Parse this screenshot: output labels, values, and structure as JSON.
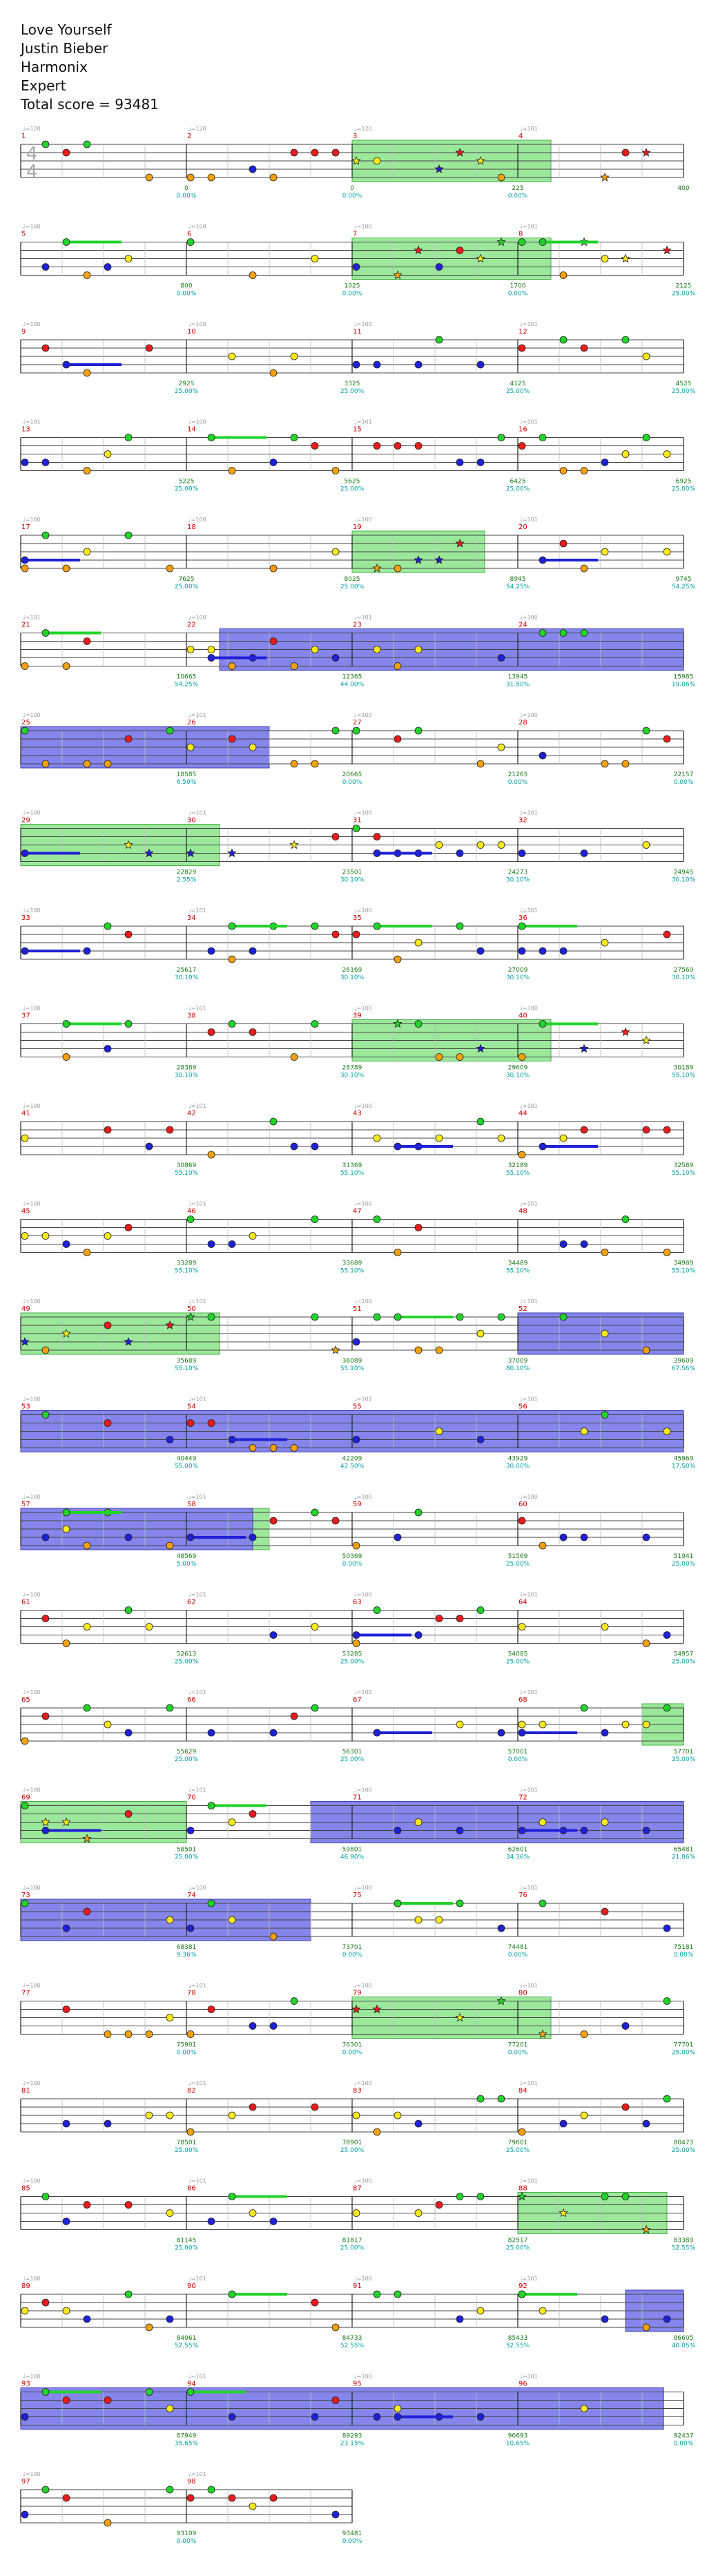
{
  "header": {
    "song": "Love Yourself",
    "artist": "Justin Bieber",
    "game": "Harmonix",
    "difficulty": "Expert",
    "total_score": "Total score = 93481"
  },
  "time_signature": {
    "top": "4",
    "bottom": "4"
  },
  "colors": {
    "green": "#22d32a",
    "red": "#e81c1c",
    "yellow": "#f7e91a",
    "blue": "#2020d8",
    "orange": "#f5a10a",
    "purple": "#8b1a8b",
    "star_power": "#9be89b",
    "overdrive": "#7070e8",
    "solo": "#c8d2e4",
    "score": "#1a7a1a",
    "percent": "#00a0a0",
    "measure": "#cc0000"
  },
  "chart_data": {
    "type": "other",
    "title": "Love Yourself",
    "rows": [
      {
        "start": 1,
        "measures": [
          1,
          2,
          3,
          4
        ],
        "tempos": [
          "120",
          "120",
          "120",
          "101"
        ],
        "scores": [
          "0",
          "0",
          "225",
          "400"
        ],
        "percents": [
          "0.00%",
          "0.00%",
          "0.00%",
          ""
        ],
        "sp": [
          [
            2,
            3.2
          ]
        ],
        "od": []
      },
      {
        "start": 5,
        "measures": [
          5,
          6,
          7,
          8
        ],
        "tempos": [
          "100",
          "100",
          "100",
          "101"
        ],
        "scores": [
          "800",
          "1025",
          "1700",
          "2125"
        ],
        "percents": [
          "0.00%",
          "0.00%",
          "0.00%",
          "25.00%"
        ],
        "sp": [
          [
            2,
            3.2
          ]
        ],
        "od": []
      },
      {
        "start": 9,
        "measures": [
          9,
          10,
          11,
          12
        ],
        "tempos": [
          "100",
          "100",
          "100",
          "101"
        ],
        "scores": [
          "2925",
          "3325",
          "4125",
          "4525"
        ],
        "percents": [
          "25.00%",
          "25.00%",
          "25.00%",
          "25.00%"
        ],
        "sp": [],
        "od": []
      },
      {
        "start": 13,
        "measures": [
          13,
          14,
          15,
          16
        ],
        "tempos": [
          "101",
          "100",
          "101",
          "101"
        ],
        "scores": [
          "5225",
          "5625",
          "6425",
          "6925"
        ],
        "percents": [
          "25.00%",
          "25.00%",
          "25.00%",
          "25.00%"
        ],
        "sp": [],
        "od": []
      },
      {
        "start": 17,
        "measures": [
          17,
          18,
          19,
          20
        ],
        "tempos": [
          "100",
          "100",
          "100",
          "101"
        ],
        "scores": [
          "7625",
          "8025",
          "8945",
          "9745"
        ],
        "percents": [
          "25.00%",
          "25.00%",
          "54.25%",
          "54.25%"
        ],
        "sp": [
          [
            2,
            2.8
          ]
        ],
        "od": []
      },
      {
        "start": 21,
        "measures": [
          21,
          22,
          23,
          24
        ],
        "tempos": [
          "101",
          "100",
          "101",
          "100"
        ],
        "scores": [
          "10665",
          "12365",
          "13945",
          "15985"
        ],
        "percents": [
          "54.25%",
          "44.00%",
          "31.50%",
          "19.06%"
        ],
        "sp": [],
        "od": [
          [
            1.2,
            4
          ]
        ]
      },
      {
        "start": 25,
        "measures": [
          25,
          26,
          27,
          28
        ],
        "tempos": [
          "100",
          "101",
          "100",
          "100"
        ],
        "scores": [
          "18585",
          "20665",
          "21265",
          "22157"
        ],
        "percents": [
          "6.50%",
          "0.00%",
          "0.00%",
          "0.00%"
        ],
        "sp": [],
        "od": [
          [
            0,
            1.5
          ]
        ]
      },
      {
        "start": 29,
        "measures": [
          29,
          30,
          31,
          32
        ],
        "tempos": [
          "100",
          "101",
          "100",
          "101"
        ],
        "scores": [
          "22829",
          "23501",
          "24273",
          "24945"
        ],
        "percents": [
          "2.55%",
          "30.10%",
          "30.10%",
          "30.10%"
        ],
        "sp": [
          [
            0,
            1.2
          ]
        ],
        "od": []
      },
      {
        "start": 33,
        "measures": [
          33,
          34,
          35,
          36
        ],
        "tempos": [
          "100",
          "101",
          "100",
          "101"
        ],
        "scores": [
          "25617",
          "26169",
          "27009",
          "27569"
        ],
        "percents": [
          "30.10%",
          "30.10%",
          "30.10%",
          "30.10%"
        ],
        "sp": [],
        "od": []
      },
      {
        "start": 37,
        "measures": [
          37,
          38,
          39,
          40
        ],
        "tempos": [
          "100",
          "101",
          "100",
          "100"
        ],
        "scores": [
          "28389",
          "28789",
          "29609",
          "30189"
        ],
        "percents": [
          "30.10%",
          "30.10%",
          "30.10%",
          "55.10%"
        ],
        "sp": [
          [
            2,
            3.2
          ]
        ],
        "od": []
      },
      {
        "start": 41,
        "measures": [
          41,
          42,
          43,
          44
        ],
        "tempos": [
          "100",
          "101",
          "100",
          "101"
        ],
        "scores": [
          "30869",
          "31369",
          "32189",
          "32589"
        ],
        "percents": [
          "55.10%",
          "55.10%",
          "55.10%",
          "55.10%"
        ],
        "sp": [],
        "od": []
      },
      {
        "start": 45,
        "measures": [
          45,
          46,
          47,
          48
        ],
        "tempos": [
          "100",
          "101",
          "100",
          "101"
        ],
        "scores": [
          "33289",
          "33689",
          "34489",
          "34989"
        ],
        "percents": [
          "55.10%",
          "55.10%",
          "55.10%",
          "55.10%"
        ],
        "sp": [],
        "od": []
      },
      {
        "start": 49,
        "measures": [
          49,
          50,
          51,
          52
        ],
        "tempos": [
          "100",
          "101",
          "100",
          "101"
        ],
        "scores": [
          "35689",
          "36089",
          "37009",
          "39609"
        ],
        "percents": [
          "55.10%",
          "55.10%",
          "80.10%",
          "67.56%"
        ],
        "sp": [
          [
            0,
            1.2
          ]
        ],
        "od": [
          [
            3,
            4
          ]
        ]
      },
      {
        "start": 53,
        "measures": [
          53,
          54,
          55,
          56
        ],
        "tempos": [
          "100",
          "101",
          "101",
          "101"
        ],
        "scores": [
          "40449",
          "42209",
          "43929",
          "45969"
        ],
        "percents": [
          "55.00%",
          "42.50%",
          "30.00%",
          "17.50%"
        ],
        "sp": [],
        "od": [
          [
            0,
            4
          ]
        ]
      },
      {
        "start": 57,
        "measures": [
          57,
          58,
          59,
          60
        ],
        "tempos": [
          "100",
          "101",
          "100",
          "100"
        ],
        "scores": [
          "48569",
          "50369",
          "51569",
          "51941"
        ],
        "percents": [
          "5.00%",
          "0.00%",
          "25.00%",
          "25.00%"
        ],
        "sp": [
          [
            1.4,
            1.5
          ]
        ],
        "od": [
          [
            0,
            1.4
          ]
        ]
      },
      {
        "start": 61,
        "measures": [
          61,
          62,
          63,
          64
        ],
        "tempos": [
          "100",
          "101",
          "100",
          "101"
        ],
        "scores": [
          "52613",
          "53285",
          "54085",
          "54957"
        ],
        "percents": [
          "25.00%",
          "25.00%",
          "25.00%",
          "25.00%"
        ],
        "sp": [],
        "od": []
      },
      {
        "start": 65,
        "measures": [
          65,
          66,
          67,
          68
        ],
        "tempos": [
          "100",
          "101",
          "100",
          "101"
        ],
        "scores": [
          "55629",
          "56301",
          "57001",
          "57701"
        ],
        "percents": [
          "25.00%",
          "25.00%",
          "0.00%",
          "25.00%"
        ],
        "sp": [
          [
            3.75,
            4
          ]
        ],
        "od": []
      },
      {
        "start": 69,
        "measures": [
          69,
          70,
          71,
          72
        ],
        "tempos": [
          "100",
          "101",
          "100",
          "101"
        ],
        "scores": [
          "58501",
          "59801",
          "62601",
          "65481"
        ],
        "percents": [
          "25.00%",
          "46.90%",
          "34.36%",
          "21.86%"
        ],
        "sp": [
          [
            0,
            1
          ]
        ],
        "od": [
          [
            1.75,
            4
          ]
        ]
      },
      {
        "start": 73,
        "measures": [
          73,
          74,
          75,
          76
        ],
        "tempos": [
          "100",
          "100",
          "100",
          "101"
        ],
        "scores": [
          "68381",
          "73701",
          "74481",
          "75181"
        ],
        "percents": [
          "9.36%",
          "0.00%",
          "0.00%",
          "0.00%"
        ],
        "sp": [],
        "od": [
          [
            0,
            1.75
          ]
        ]
      },
      {
        "start": 77,
        "measures": [
          77,
          78,
          79,
          80
        ],
        "tempos": [
          "100",
          "101",
          "100",
          "101"
        ],
        "scores": [
          "75901",
          "76301",
          "77201",
          "77701"
        ],
        "percents": [
          "0.00%",
          "0.00%",
          "0.00%",
          "25.00%"
        ],
        "sp": [
          [
            2,
            3.2
          ]
        ],
        "od": []
      },
      {
        "start": 81,
        "measures": [
          81,
          82,
          83,
          84
        ],
        "tempos": [
          "100",
          "101",
          "100",
          "101"
        ],
        "scores": [
          "78501",
          "78901",
          "79601",
          "80473"
        ],
        "percents": [
          "25.00%",
          "25.00%",
          "25.00%",
          "25.00%"
        ],
        "sp": [],
        "od": []
      },
      {
        "start": 85,
        "measures": [
          85,
          86,
          87,
          88
        ],
        "tempos": [
          "100",
          "101",
          "100",
          "101"
        ],
        "scores": [
          "81145",
          "81817",
          "82517",
          "83389"
        ],
        "percents": [
          "25.00%",
          "25.00%",
          "25.00%",
          "52.55%"
        ],
        "sp": [
          [
            3,
            3.9
          ]
        ],
        "od": []
      },
      {
        "start": 89,
        "measures": [
          89,
          90,
          91,
          92
        ],
        "tempos": [
          "100",
          "101",
          "100",
          "101"
        ],
        "scores": [
          "84061",
          "84733",
          "85433",
          "86605"
        ],
        "percents": [
          "52.55%",
          "52.55%",
          "52.55%",
          "40.05%"
        ],
        "sp": [],
        "od": [
          [
            3.65,
            4
          ]
        ]
      },
      {
        "start": 93,
        "measures": [
          93,
          94,
          95,
          96
        ],
        "tempos": [
          "100",
          "101",
          "100",
          "101"
        ],
        "scores": [
          "87949",
          "89293",
          "90693",
          "92437"
        ],
        "percents": [
          "35.65%",
          "23.15%",
          "10.65%",
          "0.00%"
        ],
        "sp": [],
        "od": [
          [
            0,
            3.88
          ]
        ]
      },
      {
        "start": 97,
        "measures": [
          97,
          98
        ],
        "tempos": [
          "100",
          "101"
        ],
        "scores": [
          "93109",
          "93481"
        ],
        "percents": [
          "0.00%",
          "0.00%"
        ],
        "sp": [],
        "od": []
      }
    ]
  }
}
